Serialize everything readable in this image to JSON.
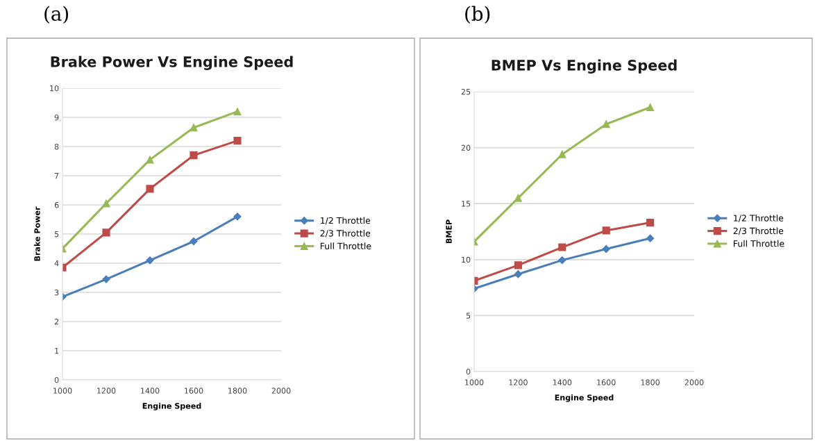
{
  "chart_data": [
    {
      "type": "line",
      "title": "Brake Power Vs Engine Speed",
      "xlabel": "Engine Speed",
      "ylabel": "Brake Power",
      "annotations": [
        "(a)"
      ],
      "x": [
        1000,
        1200,
        1400,
        1600,
        1800
      ],
      "xlim": [
        1000,
        2000
      ],
      "xticks": [
        1000,
        1200,
        1400,
        1600,
        1800,
        2000
      ],
      "ylim": [
        0,
        10
      ],
      "yticks": [
        0,
        1,
        2,
        3,
        4,
        5,
        6,
        7,
        8,
        9,
        10
      ],
      "grid": "y",
      "legend": "right",
      "series": [
        {
          "name": "1/2 Throttle",
          "color": "#4a7ebb",
          "marker": "diamond",
          "values": [
            2.85,
            3.45,
            4.1,
            4.75,
            5.6
          ]
        },
        {
          "name": "2/3 Throttle",
          "color": "#be4b48",
          "marker": "square",
          "values": [
            3.85,
            5.05,
            6.55,
            7.7,
            8.2
          ]
        },
        {
          "name": "Full Throttle",
          "color": "#98b954",
          "marker": "triangle",
          "values": [
            4.5,
            6.05,
            7.55,
            8.65,
            9.2
          ]
        }
      ]
    },
    {
      "type": "line",
      "title": "BMEP Vs Engine Speed",
      "xlabel": "Engine Speed",
      "ylabel": "BMEP",
      "annotations": [
        "(b)"
      ],
      "x": [
        1000,
        1200,
        1400,
        1600,
        1800
      ],
      "xlim": [
        1000,
        2000
      ],
      "xticks": [
        1000,
        1200,
        1400,
        1600,
        1800,
        2000
      ],
      "ylim": [
        0,
        25
      ],
      "yticks": [
        0,
        5,
        10,
        15,
        20,
        25
      ],
      "grid": "y",
      "legend": "right",
      "series": [
        {
          "name": "1/2 Throttle",
          "color": "#4a7ebb",
          "marker": "diamond",
          "values": [
            7.4,
            8.7,
            9.95,
            10.95,
            11.9
          ]
        },
        {
          "name": "2/3 Throttle",
          "color": "#be4b48",
          "marker": "square",
          "values": [
            8.1,
            9.5,
            11.1,
            12.6,
            13.3
          ]
        },
        {
          "name": "Full Throttle",
          "color": "#98b954",
          "marker": "triangle",
          "values": [
            11.6,
            15.5,
            19.4,
            22.1,
            23.6
          ]
        }
      ]
    }
  ]
}
